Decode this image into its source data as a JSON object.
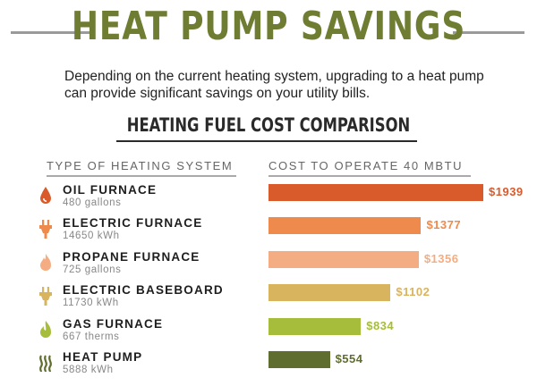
{
  "title": "HEAT PUMP SAVINGS",
  "intro": "Depending on the current heating system, upgrading to a heat pump can provide significant savings on your utility bills.",
  "chart_data": {
    "type": "bar",
    "title": "HEATING FUEL COST COMPARISON",
    "category_header": "TYPE OF HEATING SYSTEM",
    "value_header": "COST TO OPERATE 40 MBTU",
    "xlim": [
      0,
      1939
    ],
    "categories": [
      "OIL FURNACE",
      "ELECTRIC FURNACE",
      "PROPANE FURNACE",
      "ELECTRIC BASEBOARD",
      "GAS FURNACE",
      "HEAT PUMP"
    ],
    "usage": [
      "480 gallons",
      "14650 kWh",
      "725 gallons",
      "11730 kWh",
      "667 therms",
      "5888 kWh"
    ],
    "values": [
      1939,
      1377,
      1356,
      1102,
      834,
      554
    ],
    "value_labels": [
      "$1939",
      "$1377",
      "$1356",
      "$1102",
      "$834",
      "$554"
    ],
    "colors": [
      "#d95b2b",
      "#ee8a4b",
      "#f4ad82",
      "#d9b45e",
      "#a6bd3b",
      "#5f6d2e"
    ],
    "icons": [
      "oil-drop-icon",
      "electric-plug-icon",
      "propane-flame-icon",
      "baseboard-plug-icon",
      "gas-flame-icon",
      "heat-waves-icon"
    ]
  }
}
